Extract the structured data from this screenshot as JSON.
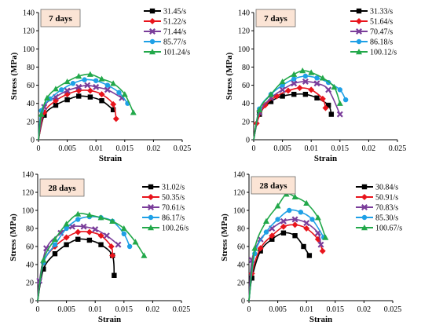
{
  "chart_data": [
    {
      "type": "line",
      "age_label": "7 days",
      "xlabel": "Strain",
      "ylabel": "Stress (MPa)",
      "xlim": [
        0,
        0.025
      ],
      "ylim": [
        0,
        140
      ],
      "xticks": [
        "0",
        "0.005",
        "0.01",
        "0.015",
        "0.02",
        "0.025"
      ],
      "yticks": [
        "0",
        "20",
        "40",
        "60",
        "80",
        "100",
        "120",
        "140"
      ],
      "series": [
        {
          "name": "31.45/s",
          "color": "#000000",
          "marker": "square",
          "x": [
            0,
            0.001,
            0.003,
            0.005,
            0.007,
            0.009,
            0.011,
            0.013
          ],
          "y": [
            0,
            27,
            38,
            44,
            48,
            47,
            43,
            33
          ]
        },
        {
          "name": "51.22/s",
          "color": "#e8141c",
          "marker": "diamond",
          "x": [
            0,
            0.001,
            0.003,
            0.005,
            0.007,
            0.009,
            0.011,
            0.013,
            0.0135
          ],
          "y": [
            0,
            30,
            43,
            50,
            54,
            54,
            50,
            39,
            23
          ]
        },
        {
          "name": "71.44/s",
          "color": "#7a3d9a",
          "marker": "x",
          "x": [
            0,
            0.001,
            0.003,
            0.005,
            0.007,
            0.0085,
            0.01,
            0.012,
            0.0145
          ],
          "y": [
            0,
            36,
            47,
            54,
            58,
            60,
            58,
            55,
            46
          ]
        },
        {
          "name": "85.77/s",
          "color": "#1ea0e6",
          "marker": "circle",
          "x": [
            0,
            0.0005,
            0.002,
            0.004,
            0.006,
            0.008,
            0.01,
            0.012,
            0.014,
            0.0155
          ],
          "y": [
            0,
            32,
            45,
            55,
            62,
            66,
            65,
            60,
            52,
            40
          ]
        },
        {
          "name": "101.24/s",
          "color": "#22a84a",
          "marker": "triangle",
          "x": [
            0,
            0.0005,
            0.0015,
            0.003,
            0.005,
            0.007,
            0.009,
            0.011,
            0.013,
            0.015,
            0.0165
          ],
          "y": [
            0,
            28,
            46,
            56,
            64,
            70,
            72,
            67,
            62,
            50,
            30
          ]
        }
      ]
    },
    {
      "type": "line",
      "age_label": "7 days",
      "xlabel": "Strain",
      "ylabel": "Stress (MPa)",
      "xlim": [
        0,
        0.025
      ],
      "ylim": [
        0,
        140
      ],
      "xticks": [
        "0",
        "0.005",
        "0.01",
        "0.015",
        "0.02",
        "0.025"
      ],
      "yticks": [
        "0",
        "20",
        "40",
        "60",
        "80",
        "100",
        "120",
        "140"
      ],
      "series": [
        {
          "name": "31.33/s",
          "color": "#000000",
          "marker": "square",
          "x": [
            0,
            0.001,
            0.003,
            0.005,
            0.007,
            0.009,
            0.011,
            0.013,
            0.0135
          ],
          "y": [
            0,
            28,
            42,
            48,
            50,
            50,
            46,
            38,
            28
          ]
        },
        {
          "name": "51.64/s",
          "color": "#e8141c",
          "marker": "diamond",
          "x": [
            0,
            0.0005,
            0.002,
            0.004,
            0.006,
            0.008,
            0.01,
            0.012,
            0.0125
          ],
          "y": [
            0,
            18,
            38,
            48,
            54,
            57,
            55,
            45,
            35
          ]
        },
        {
          "name": "70.47/s",
          "color": "#7a3d9a",
          "marker": "x",
          "x": [
            0,
            0.001,
            0.003,
            0.005,
            0.007,
            0.009,
            0.011,
            0.013,
            0.015
          ],
          "y": [
            0,
            30,
            46,
            55,
            62,
            64,
            62,
            55,
            28
          ]
        },
        {
          "name": "86.18/s",
          "color": "#1ea0e6",
          "marker": "circle",
          "x": [
            0,
            0.001,
            0.003,
            0.005,
            0.007,
            0.009,
            0.011,
            0.013,
            0.015,
            0.016
          ],
          "y": [
            0,
            34,
            50,
            60,
            67,
            70,
            68,
            63,
            55,
            44
          ]
        },
        {
          "name": "100.12/s",
          "color": "#22a84a",
          "marker": "triangle",
          "x": [
            0,
            0.001,
            0.003,
            0.005,
            0.007,
            0.0085,
            0.01,
            0.012,
            0.014,
            0.015
          ],
          "y": [
            0,
            33,
            50,
            64,
            72,
            76,
            74,
            68,
            58,
            40
          ]
        }
      ]
    },
    {
      "type": "line",
      "age_label": "28 days",
      "xlabel": "Strain",
      "ylabel": "Stress (MPa)",
      "xlim": [
        0,
        0.025
      ],
      "ylim": [
        0,
        140
      ],
      "xticks": [
        "0",
        "0.005",
        "0.01",
        "0.015",
        "0.02",
        "0.025"
      ],
      "yticks": [
        "0",
        "20",
        "40",
        "60",
        "80",
        "100",
        "120",
        "140"
      ],
      "series": [
        {
          "name": "31.02/s",
          "color": "#000000",
          "marker": "square",
          "x": [
            0,
            0.001,
            0.003,
            0.005,
            0.007,
            0.009,
            0.011,
            0.013,
            0.0133
          ],
          "y": [
            0,
            35,
            52,
            62,
            68,
            67,
            62,
            50,
            28
          ]
        },
        {
          "name": "50.35/s",
          "color": "#e8141c",
          "marker": "diamond",
          "x": [
            0,
            0.001,
            0.003,
            0.005,
            0.007,
            0.009,
            0.011,
            0.0128,
            0.013
          ],
          "y": [
            0,
            42,
            60,
            70,
            76,
            76,
            72,
            60,
            50
          ]
        },
        {
          "name": "70.61/s",
          "color": "#7a3d9a",
          "marker": "x",
          "x": [
            0,
            0.0003,
            0.0015,
            0.004,
            0.006,
            0.008,
            0.01,
            0.012,
            0.014
          ],
          "y": [
            0,
            22,
            58,
            75,
            82,
            82,
            79,
            72,
            62
          ]
        },
        {
          "name": "86.17/s",
          "color": "#1ea0e6",
          "marker": "circle",
          "x": [
            0,
            0.001,
            0.003,
            0.005,
            0.007,
            0.009,
            0.011,
            0.013,
            0.015,
            0.016
          ],
          "y": [
            0,
            42,
            62,
            80,
            90,
            93,
            92,
            88,
            74,
            60
          ]
        },
        {
          "name": "100.26/s",
          "color": "#22a84a",
          "marker": "triangle",
          "x": [
            0,
            0.001,
            0.003,
            0.005,
            0.007,
            0.009,
            0.011,
            0.013,
            0.015,
            0.017,
            0.0185
          ],
          "y": [
            0,
            45,
            68,
            85,
            96,
            95,
            92,
            88,
            80,
            65,
            50
          ]
        }
      ]
    },
    {
      "type": "line",
      "age_label": "28 days",
      "xlabel": "Strain",
      "ylabel": "Stress (MPa)",
      "xlim": [
        0,
        0.025
      ],
      "ylim": [
        0,
        140
      ],
      "xticks": [
        "0",
        "0.005",
        "0.01",
        "0.015",
        "0.02",
        "0.025"
      ],
      "yticks": [
        "0",
        "20",
        "40",
        "60",
        "80",
        "100",
        "120",
        "140"
      ],
      "series": [
        {
          "name": "30.84/s",
          "color": "#000000",
          "marker": "square",
          "x": [
            0,
            0.0005,
            0.002,
            0.004,
            0.006,
            0.008,
            0.0095,
            0.0105
          ],
          "y": [
            0,
            25,
            55,
            68,
            75,
            72,
            60,
            50
          ]
        },
        {
          "name": "50.91/s",
          "color": "#e8141c",
          "marker": "diamond",
          "x": [
            0,
            0.0005,
            0.002,
            0.004,
            0.006,
            0.008,
            0.01,
            0.012,
            0.0128
          ],
          "y": [
            0,
            30,
            58,
            72,
            82,
            84,
            80,
            68,
            55
          ]
        },
        {
          "name": "70.83/s",
          "color": "#7a3d9a",
          "marker": "x",
          "x": [
            0,
            0.0005,
            0.002,
            0.004,
            0.006,
            0.008,
            0.01,
            0.012,
            0.0125
          ],
          "y": [
            0,
            45,
            68,
            80,
            88,
            90,
            86,
            75,
            62
          ]
        },
        {
          "name": "85.30/s",
          "color": "#1ea0e6",
          "marker": "circle",
          "x": [
            0,
            0.001,
            0.003,
            0.005,
            0.007,
            0.009,
            0.011,
            0.013
          ],
          "y": [
            0,
            52,
            76,
            90,
            100,
            98,
            90,
            70
          ]
        },
        {
          "name": "100.67/s",
          "color": "#22a84a",
          "marker": "triangle",
          "x": [
            0,
            0.001,
            0.003,
            0.005,
            0.0065,
            0.008,
            0.01,
            0.012,
            0.0133
          ],
          "y": [
            0,
            58,
            88,
            105,
            118,
            115,
            108,
            92,
            70
          ]
        }
      ]
    }
  ]
}
